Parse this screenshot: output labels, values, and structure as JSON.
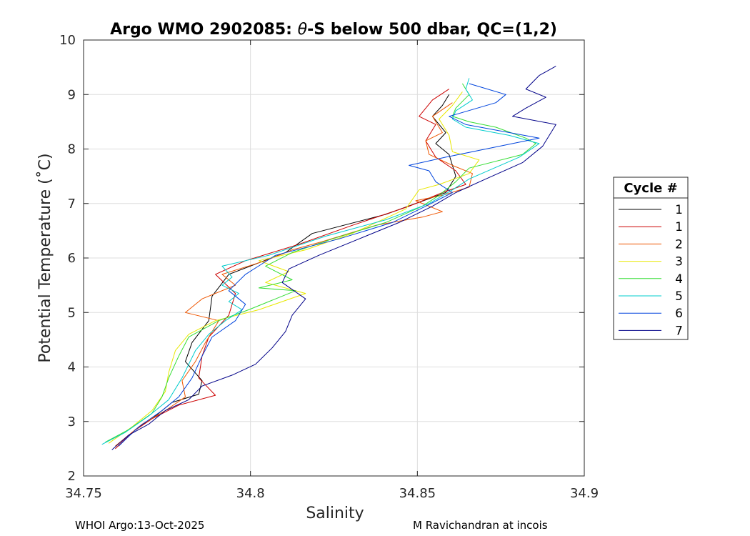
{
  "chart_data": {
    "type": "line",
    "title_prefix": "Argo WMO 2902085: ",
    "title_symbol": "θ",
    "title_suffix": "-S below 500 dbar,  QC=(1,2)",
    "xlabel": "Salinity",
    "ylabel": "Potential Temperature (˚C)",
    "xlim": [
      34.75,
      34.9
    ],
    "ylim": [
      2,
      10
    ],
    "xticks": [
      34.75,
      34.8,
      34.85,
      34.9
    ],
    "xtick_labels": [
      "34.75",
      "34.8",
      "34.85",
      "34.9"
    ],
    "yticks": [
      2,
      3,
      4,
      5,
      6,
      7,
      8,
      9,
      10
    ],
    "ytick_labels": [
      "2",
      "3",
      "4",
      "5",
      "6",
      "7",
      "8",
      "9",
      "10"
    ],
    "grid": true,
    "legend_title": "Cycle #",
    "legend_position": "right",
    "series": [
      {
        "name": "1",
        "color": "#000000",
        "points": [
          [
            34.7605,
            2.55
          ],
          [
            34.7655,
            2.85
          ],
          [
            34.7715,
            3.1
          ],
          [
            34.7765,
            3.35
          ],
          [
            34.7845,
            3.5
          ],
          [
            34.7855,
            3.75
          ],
          [
            34.7805,
            4.1
          ],
          [
            34.7825,
            4.45
          ],
          [
            34.7875,
            4.85
          ],
          [
            34.7885,
            5.3
          ],
          [
            34.7935,
            5.7
          ],
          [
            34.8105,
            6.1
          ],
          [
            34.8185,
            6.45
          ],
          [
            34.8405,
            6.8
          ],
          [
            34.8585,
            7.2
          ],
          [
            34.8615,
            7.5
          ],
          [
            34.8595,
            7.9
          ],
          [
            34.8555,
            8.1
          ],
          [
            34.8585,
            8.3
          ],
          [
            34.8545,
            8.6
          ],
          [
            34.8575,
            8.8
          ],
          [
            34.8595,
            9.0
          ]
        ]
      },
      {
        "name": "1",
        "color": "#cc0000",
        "points": [
          [
            34.7595,
            2.5
          ],
          [
            34.7645,
            2.8
          ],
          [
            34.7705,
            3.05
          ],
          [
            34.7785,
            3.3
          ],
          [
            34.7895,
            3.48
          ],
          [
            34.7845,
            3.8
          ],
          [
            34.7855,
            4.2
          ],
          [
            34.7875,
            4.55
          ],
          [
            34.7935,
            4.95
          ],
          [
            34.7955,
            5.35
          ],
          [
            34.7895,
            5.7
          ],
          [
            34.7985,
            5.95
          ],
          [
            34.8145,
            6.25
          ],
          [
            34.8305,
            6.6
          ],
          [
            34.8475,
            6.95
          ],
          [
            34.8575,
            7.2
          ],
          [
            34.8645,
            7.35
          ],
          [
            34.8615,
            7.6
          ],
          [
            34.8555,
            7.85
          ],
          [
            34.8525,
            8.15
          ],
          [
            34.8555,
            8.45
          ],
          [
            34.8505,
            8.6
          ],
          [
            34.8545,
            8.9
          ],
          [
            34.8595,
            9.1
          ]
        ]
      },
      {
        "name": "2",
        "color": "#ee5500",
        "points": [
          [
            34.7595,
            2.55
          ],
          [
            34.7675,
            2.95
          ],
          [
            34.7745,
            3.2
          ],
          [
            34.7805,
            3.45
          ],
          [
            34.7795,
            3.75
          ],
          [
            34.7835,
            4.1
          ],
          [
            34.7865,
            4.45
          ],
          [
            34.7905,
            4.85
          ],
          [
            34.7805,
            5.0
          ],
          [
            34.7855,
            5.25
          ],
          [
            34.7955,
            5.5
          ],
          [
            34.7915,
            5.7
          ],
          [
            34.8045,
            5.95
          ],
          [
            34.8125,
            6.15
          ],
          [
            34.8215,
            6.3
          ],
          [
            34.8375,
            6.6
          ],
          [
            34.8515,
            6.75
          ],
          [
            34.8575,
            6.85
          ],
          [
            34.8495,
            7.05
          ],
          [
            34.8575,
            7.15
          ],
          [
            34.8655,
            7.3
          ],
          [
            34.8665,
            7.55
          ],
          [
            34.8605,
            7.7
          ],
          [
            34.8535,
            7.9
          ],
          [
            34.8525,
            8.15
          ],
          [
            34.8575,
            8.3
          ],
          [
            34.8545,
            8.6
          ],
          [
            34.8605,
            8.85
          ]
        ]
      },
      {
        "name": "3",
        "color": "#e8e800",
        "points": [
          [
            34.7575,
            2.6
          ],
          [
            34.7645,
            2.9
          ],
          [
            34.7705,
            3.2
          ],
          [
            34.7745,
            3.55
          ],
          [
            34.7755,
            3.9
          ],
          [
            34.7775,
            4.3
          ],
          [
            34.7815,
            4.6
          ],
          [
            34.7895,
            4.85
          ],
          [
            34.8025,
            5.05
          ],
          [
            34.8165,
            5.35
          ],
          [
            34.8045,
            5.55
          ],
          [
            34.8115,
            5.75
          ],
          [
            34.8025,
            5.95
          ],
          [
            34.8165,
            6.15
          ],
          [
            34.8305,
            6.45
          ],
          [
            34.8465,
            6.9
          ],
          [
            34.8505,
            7.25
          ],
          [
            34.8565,
            7.35
          ],
          [
            34.8655,
            7.55
          ],
          [
            34.8685,
            7.8
          ],
          [
            34.8605,
            7.95
          ],
          [
            34.8595,
            8.25
          ],
          [
            34.8565,
            8.55
          ],
          [
            34.8605,
            8.8
          ],
          [
            34.8635,
            9.05
          ]
        ]
      },
      {
        "name": "4",
        "color": "#33dd33",
        "points": [
          [
            34.7565,
            2.62
          ],
          [
            34.7635,
            2.85
          ],
          [
            34.7705,
            3.15
          ],
          [
            34.7735,
            3.45
          ],
          [
            34.7755,
            3.8
          ],
          [
            34.7785,
            4.2
          ],
          [
            34.7815,
            4.55
          ],
          [
            34.7905,
            4.85
          ],
          [
            34.7995,
            5.05
          ],
          [
            34.8135,
            5.4
          ],
          [
            34.8025,
            5.45
          ],
          [
            34.8125,
            5.6
          ],
          [
            34.8045,
            5.85
          ],
          [
            34.8125,
            6.1
          ],
          [
            34.8245,
            6.35
          ],
          [
            34.8405,
            6.65
          ],
          [
            34.8515,
            6.95
          ],
          [
            34.8565,
            7.15
          ],
          [
            34.8615,
            7.4
          ],
          [
            34.8655,
            7.65
          ],
          [
            34.8815,
            7.9
          ],
          [
            34.8855,
            8.1
          ],
          [
            34.8825,
            8.2
          ],
          [
            34.8735,
            8.4
          ],
          [
            34.8655,
            8.5
          ],
          [
            34.8605,
            8.6
          ],
          [
            34.8615,
            8.75
          ],
          [
            34.8655,
            9.0
          ],
          [
            34.8635,
            9.2
          ]
        ]
      },
      {
        "name": "5",
        "color": "#00cccc",
        "points": [
          [
            34.7555,
            2.58
          ],
          [
            34.7625,
            2.8
          ],
          [
            34.7695,
            3.1
          ],
          [
            34.7755,
            3.4
          ],
          [
            34.7795,
            3.8
          ],
          [
            34.7835,
            4.3
          ],
          [
            34.7875,
            4.6
          ],
          [
            34.7925,
            4.85
          ],
          [
            34.7975,
            5.05
          ],
          [
            34.7935,
            5.2
          ],
          [
            34.7965,
            5.35
          ],
          [
            34.7915,
            5.5
          ],
          [
            34.7945,
            5.65
          ],
          [
            34.7915,
            5.85
          ],
          [
            34.8055,
            6.05
          ],
          [
            34.8225,
            6.4
          ],
          [
            34.8405,
            6.7
          ],
          [
            34.8535,
            7.0
          ],
          [
            34.8605,
            7.25
          ],
          [
            34.8655,
            7.45
          ],
          [
            34.8805,
            7.85
          ],
          [
            34.8865,
            8.1
          ],
          [
            34.8775,
            8.25
          ],
          [
            34.8645,
            8.4
          ],
          [
            34.8605,
            8.55
          ],
          [
            34.8615,
            8.7
          ],
          [
            34.8665,
            8.9
          ],
          [
            34.8645,
            9.1
          ],
          [
            34.8655,
            9.3
          ]
        ]
      },
      {
        "name": "6",
        "color": "#0044dd",
        "points": [
          [
            34.7605,
            2.55
          ],
          [
            34.7665,
            2.9
          ],
          [
            34.7735,
            3.2
          ],
          [
            34.7785,
            3.45
          ],
          [
            34.7825,
            3.8
          ],
          [
            34.7855,
            4.2
          ],
          [
            34.7885,
            4.55
          ],
          [
            34.7955,
            4.85
          ],
          [
            34.7985,
            5.15
          ],
          [
            34.7935,
            5.4
          ],
          [
            34.7985,
            5.7
          ],
          [
            34.8075,
            6.05
          ],
          [
            34.8265,
            6.35
          ],
          [
            34.8425,
            6.65
          ],
          [
            34.8525,
            6.95
          ],
          [
            34.8605,
            7.2
          ],
          [
            34.8555,
            7.4
          ],
          [
            34.8535,
            7.6
          ],
          [
            34.8475,
            7.7
          ],
          [
            34.8585,
            7.85
          ],
          [
            34.8705,
            8.0
          ],
          [
            34.8865,
            8.2
          ],
          [
            34.8645,
            8.45
          ],
          [
            34.8595,
            8.6
          ],
          [
            34.8735,
            8.85
          ],
          [
            34.8765,
            9.0
          ],
          [
            34.8655,
            9.2
          ]
        ]
      },
      {
        "name": "7",
        "color": "#000088",
        "points": [
          [
            34.7585,
            2.48
          ],
          [
            34.7635,
            2.75
          ],
          [
            34.7695,
            2.95
          ],
          [
            34.7745,
            3.2
          ],
          [
            34.7815,
            3.4
          ],
          [
            34.7855,
            3.65
          ],
          [
            34.7945,
            3.85
          ],
          [
            34.8015,
            4.05
          ],
          [
            34.8065,
            4.35
          ],
          [
            34.8105,
            4.65
          ],
          [
            34.8125,
            4.95
          ],
          [
            34.8165,
            5.25
          ],
          [
            34.8095,
            5.55
          ],
          [
            34.8115,
            5.8
          ],
          [
            34.8205,
            6.05
          ],
          [
            34.8325,
            6.35
          ],
          [
            34.8445,
            6.65
          ],
          [
            34.8545,
            6.95
          ],
          [
            34.8615,
            7.2
          ],
          [
            34.8705,
            7.45
          ],
          [
            34.8815,
            7.75
          ],
          [
            34.8875,
            8.05
          ],
          [
            34.8915,
            8.45
          ],
          [
            34.8785,
            8.6
          ],
          [
            34.8825,
            8.75
          ],
          [
            34.8885,
            8.95
          ],
          [
            34.8825,
            9.1
          ],
          [
            34.8865,
            9.35
          ],
          [
            34.8915,
            9.52
          ]
        ]
      }
    ]
  },
  "footer": {
    "left": "WHOI Argo:13-Oct-2025",
    "right": "M Ravichandran at incois"
  }
}
